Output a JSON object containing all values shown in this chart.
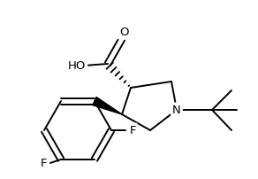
{
  "background_color": "#ffffff",
  "line_color": "#000000",
  "line_width": 1.4,
  "figsize": [
    2.92,
    2.03
  ],
  "dpi": 100,
  "xlim": [
    0,
    292
  ],
  "ylim": [
    0,
    203
  ]
}
